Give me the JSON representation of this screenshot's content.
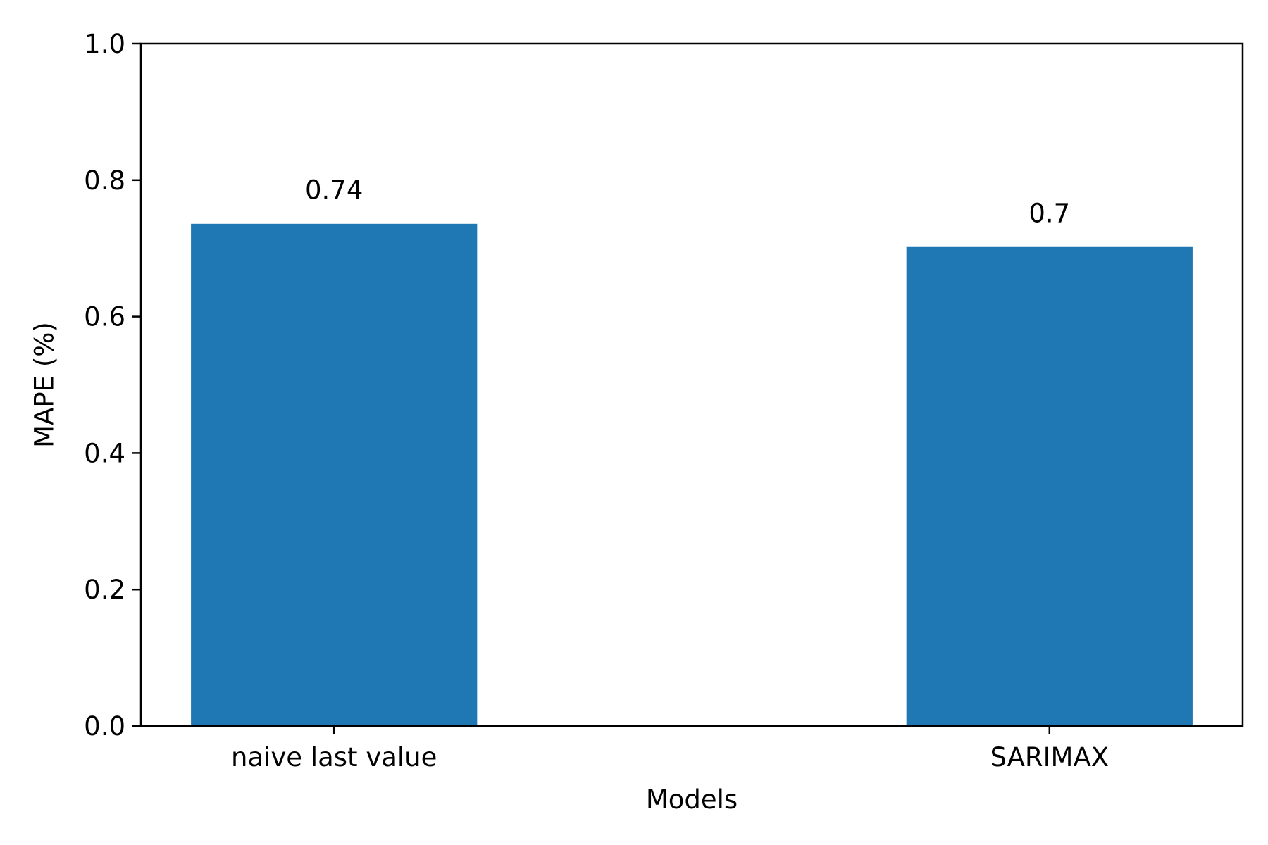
{
  "chart_data": {
    "type": "bar",
    "categories": [
      "naive last value",
      "SARIMAX"
    ],
    "values": [
      0.736,
      0.702
    ],
    "data_labels": [
      "0.74",
      "0.7"
    ],
    "xlabel": "Models",
    "ylabel": "MAPE (%)",
    "ylim": [
      0,
      1.0
    ],
    "yticks": [
      0.0,
      0.2,
      0.4,
      0.6,
      0.8,
      1.0
    ],
    "ytick_labels": [
      "0.0",
      "0.2",
      "0.4",
      "0.6",
      "0.8",
      "1.0"
    ],
    "grid": false,
    "legend": "none",
    "bar_color": "#1f77b4"
  }
}
